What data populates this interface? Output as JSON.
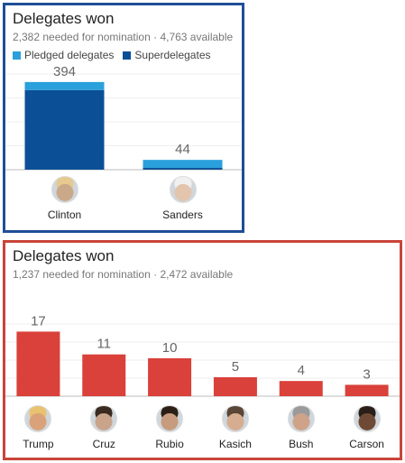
{
  "panels": [
    {
      "title": "Delegates won",
      "subtitle": "2,382 needed for nomination · 4,763 available",
      "legend": [
        {
          "label": "Pledged delegates",
          "color": "#2aa0dc"
        },
        {
          "label": "Superdelegates",
          "color": "#0b4f96"
        }
      ],
      "accent": "#1f4e96"
    },
    {
      "title": "Delegates won",
      "subtitle": "1,237 needed for nomination · 2,472 available",
      "accent": "#c9443a"
    }
  ],
  "chart_data": [
    {
      "type": "bar",
      "title": "Delegates won",
      "categories": [
        "Clinton",
        "Sanders"
      ],
      "series": [
        {
          "name": "Pledged delegates",
          "color": "#2aa0dc",
          "values": [
            36,
            36
          ]
        },
        {
          "name": "Superdelegates",
          "color": "#0b4f96",
          "values": [
            358,
            8
          ]
        }
      ],
      "totals": [
        394,
        44
      ],
      "ylim": [
        0,
        430
      ],
      "grid": true,
      "legend": "top-left"
    },
    {
      "type": "bar",
      "title": "Delegates won",
      "categories": [
        "Trump",
        "Cruz",
        "Rubio",
        "Kasich",
        "Bush",
        "Carson"
      ],
      "values": [
        17,
        11,
        10,
        5,
        4,
        3
      ],
      "color": "#d9413a",
      "ylim": [
        0,
        19
      ],
      "grid": true
    }
  ],
  "avatars": {
    "Clinton": {
      "bg": "#c9a98a",
      "hair": "#e6c98f"
    },
    "Sanders": {
      "bg": "#e3c4ad",
      "hair": "#f0f0f0"
    },
    "Trump": {
      "bg": "#d9a27a",
      "hair": "#e8c26f"
    },
    "Cruz": {
      "bg": "#c9a48a",
      "hair": "#3a2a1f"
    },
    "Rubio": {
      "bg": "#c79c7e",
      "hair": "#2c2016"
    },
    "Kasich": {
      "bg": "#d6ad90",
      "hair": "#5a4636"
    },
    "Bush": {
      "bg": "#cfa38a",
      "hair": "#9a9a9a"
    },
    "Carson": {
      "bg": "#6e4a36",
      "hair": "#2a1e18"
    }
  }
}
